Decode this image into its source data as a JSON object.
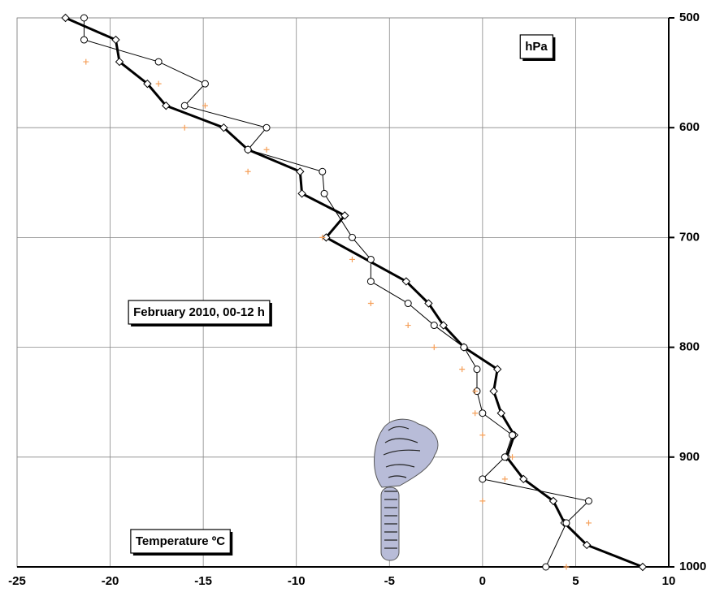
{
  "chart_data": {
    "type": "scatter",
    "annotations": [
      "hPa",
      "February 2010, 00-12 h",
      "Temperature ºC"
    ],
    "xlim": [
      -25,
      10
    ],
    "xticks": [
      -25,
      -20,
      -15,
      -10,
      -5,
      0,
      5,
      10
    ],
    "ylim": [
      1000,
      500
    ],
    "yticks": [
      500,
      600,
      700,
      800,
      900,
      1000
    ],
    "grid": true,
    "series": [
      {
        "color": "#000000",
        "line_width": 3,
        "marker": "diamond",
        "line": true,
        "x": [
          -22.4,
          -19.7,
          -19.5,
          -18.0,
          -17.0,
          -13.9,
          -12.6,
          -9.8,
          -9.7,
          -7.4,
          -8.4,
          -4.1,
          -2.9,
          -2.1,
          -1.0,
          0.8,
          0.6,
          1.0,
          1.7,
          1.3,
          2.2,
          3.8,
          4.4,
          5.6,
          8.6
        ],
        "values": [
          500,
          520,
          540,
          560,
          580,
          600,
          620,
          640,
          660,
          680,
          700,
          740,
          760,
          780,
          800,
          820,
          840,
          860,
          880,
          900,
          920,
          940,
          960,
          980,
          1000
        ]
      },
      {
        "color": "#000000",
        "line_width": 1,
        "marker": "circle",
        "line": true,
        "x": [
          -21.4,
          -21.4,
          -17.4,
          -14.9,
          -16.0,
          -11.6,
          -12.6,
          -8.6,
          -8.5,
          -7.0,
          -6.0,
          -6.0,
          -4.0,
          -2.6,
          -1.0,
          -0.3,
          -0.3,
          0,
          1.6,
          1.2,
          0,
          5.7,
          4.5,
          3.4
        ],
        "values": [
          500,
          520,
          540,
          560,
          580,
          600,
          620,
          640,
          660,
          700,
          720,
          740,
          760,
          780,
          800,
          820,
          840,
          860,
          880,
          900,
          920,
          940,
          960,
          1000
        ]
      },
      {
        "color": "#f5a05a",
        "line_width": 0,
        "marker": "plus",
        "line": false,
        "x": [
          -21.3,
          -17.4,
          -14.9,
          -16.0,
          -11.6,
          -12.6,
          -8.6,
          -7.0,
          -6.0,
          -4.0,
          -2.6,
          -1.1,
          -0.4,
          -0.4,
          0,
          1.6,
          1.2,
          0,
          5.7,
          4.5
        ],
        "values": [
          540,
          560,
          580,
          600,
          620,
          640,
          700,
          720,
          760,
          780,
          800,
          820,
          840,
          860,
          880,
          900,
          920,
          940,
          960,
          1000
        ]
      }
    ]
  }
}
